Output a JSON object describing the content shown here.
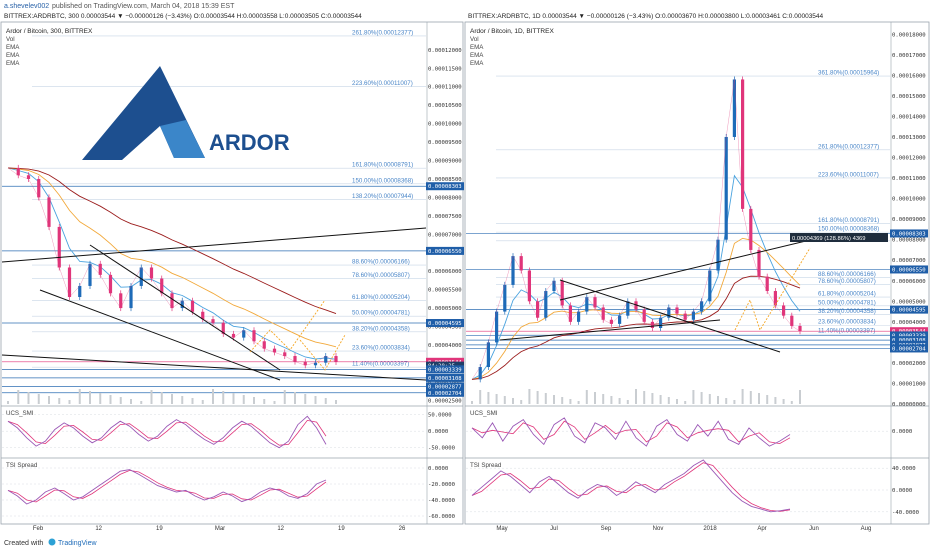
{
  "header": {
    "author": "a.shevelev002",
    "published_text": "published on TradingView.com, March 04, 2018 15:39 EST",
    "left_ohlc": "BITTREX:ARDRBTC, 300  0.00003544 ▼ −0.00000126 (−3.43%) O:0.00003544 H:0.00003558 L:0.00003505 C:0.00003544",
    "right_ohlc": "BITTREX:ARDRBTC, 1D  0.00003544 ▼ −0.00000126 (−3.43%) O:0.00003670 H:0.00003800 L:0.00003461 C:0.00003544"
  },
  "footer": {
    "created_with": "Created with",
    "brand": "TradingView"
  },
  "logo": {
    "text": "ARDOR"
  },
  "colors": {
    "candle_up": "#1e6bb8",
    "candle_down": "#e0357a",
    "ema_short": "#4aa3df",
    "ema_mid": "#f2a93b",
    "ema_long": "#9b1c1c",
    "fib_text": "#4a86c8",
    "fib_line": "#c8d6e6",
    "price_badge": "#1f5ea8",
    "last_price_badge": "#e0357a",
    "arrow_orange": "#f5a623",
    "smi": "#9b59b6",
    "smi_signal": "#e0357a",
    "tsi": "#9b59b6",
    "tsi_signal": "#e0357a",
    "logo_dark": "#1d4f8f",
    "logo_light": "#3b86c9"
  },
  "chart_data": [
    {
      "type": "line",
      "panel": "left",
      "symbol_label": "Ardor / Bitcoin, 300, BITTREX",
      "indicators": [
        "Vol",
        "EMA",
        "EMA",
        "EMA"
      ],
      "y_axis_ticks": [
        "0.00012000",
        "0.00011500",
        "0.00011000",
        "0.00010500",
        "0.00010000",
        "0.00009500",
        "0.00009000",
        "0.00008500",
        "0.00008000",
        "0.00007500",
        "0.00007000",
        "0.00006500",
        "0.00006000",
        "0.00005500",
        "0.00005000",
        "0.00004500",
        "0.00004000",
        "0.00003500",
        "0.00003000",
        "0.00002500"
      ],
      "ylim": [
        2.4e-05,
        0.000127
      ],
      "x_ticks": [
        "Feb",
        "12",
        "19",
        "Mar",
        "12",
        "19",
        "26"
      ],
      "fib_levels": [
        {
          "label": "261.80%(0.00012377)",
          "value": 0.00012377
        },
        {
          "label": "223.60%(0.00011007)",
          "value": 0.00011007
        },
        {
          "label": "161.80%(0.00008791)",
          "value": 8.791e-05
        },
        {
          "label": "150.00%(0.00008368)",
          "value": 8.368e-05
        },
        {
          "label": "138.20%(0.00007944)",
          "value": 7.944e-05
        },
        {
          "label": "88.60%(0.00006166)",
          "value": 6.166e-05
        },
        {
          "label": "78.60%(0.00005807)",
          "value": 5.807e-05
        },
        {
          "label": "61.80%(0.00005204)",
          "value": 5.204e-05
        },
        {
          "label": "50.00%(0.00004781)",
          "value": 4.781e-05
        },
        {
          "label": "38.20%(0.00004358)",
          "value": 4.358e-05
        },
        {
          "label": "23.60%(0.00003834)",
          "value": 3.834e-05
        },
        {
          "label": "11.40%(0.00003397)",
          "value": 3.397e-05
        }
      ],
      "price_badges": [
        {
          "label": "0.00008303",
          "value": 8.303e-05
        },
        {
          "label": "0.00006550",
          "value": 6.55e-05
        },
        {
          "label": "0.00004595",
          "value": 4.595e-05
        },
        {
          "label": "0.00003544",
          "value": 3.544e-05,
          "last": true
        },
        {
          "label": "04:20:25",
          "value": 3.44e-05,
          "timer": true
        },
        {
          "label": "0.00003339",
          "value": 3.339e-05
        },
        {
          "label": "0.00003108",
          "value": 3.108e-05
        },
        {
          "label": "0.00002877",
          "value": 2.877e-05
        },
        {
          "label": "0.00002704",
          "value": 2.704e-05
        }
      ],
      "price_path": [
        8.8e-05,
        8.6e-05,
        8.5e-05,
        8e-05,
        7.2e-05,
        6.1e-05,
        5.3e-05,
        5.6e-05,
        6.2e-05,
        5.9e-05,
        5.4e-05,
        5e-05,
        5.6e-05,
        6.1e-05,
        5.8e-05,
        5.4e-05,
        5e-05,
        5.2e-05,
        4.9e-05,
        4.7e-05,
        4.6e-05,
        4.3e-05,
        4.2e-05,
        4.4e-05,
        4.1e-05,
        3.9e-05,
        3.8e-05,
        3.7e-05,
        3.55e-05,
        3.45e-05,
        3.52e-05,
        3.7e-05,
        3.54e-05
      ]
    },
    {
      "type": "line",
      "panel": "right",
      "symbol_label": "Ardor / Bitcoin, 1D, BITTREX",
      "indicators": [
        "Vol",
        "EMA",
        "EMA",
        "EMA"
      ],
      "y_axis_ticks": [
        "0.00018000",
        "0.00017000",
        "0.00016000",
        "0.00015000",
        "0.00014000",
        "0.00013000",
        "0.00012000",
        "0.00011000",
        "0.00010000",
        "0.00009000",
        "0.00008000",
        "0.00007000",
        "0.00006000",
        "0.00005000",
        "0.00004000",
        "0.00003000",
        "0.00002000",
        "0.00001000",
        "0.00000000"
      ],
      "ylim": [
        0.0,
        0.000185
      ],
      "x_ticks": [
        "May",
        "Jul",
        "Sep",
        "Nov",
        "2018",
        "Apr",
        "Jun",
        "Aug"
      ],
      "fib_levels": [
        {
          "label": "361.80%(0.00015964)",
          "value": 0.00015964
        },
        {
          "label": "261.80%(0.00012377)",
          "value": 0.00012377
        },
        {
          "label": "223.60%(0.00011007)",
          "value": 0.00011007
        },
        {
          "label": "161.80%(0.00008791)",
          "value": 8.791e-05
        },
        {
          "label": "150.00%(0.00008368)",
          "value": 8.368e-05
        },
        {
          "label": "138.20%(0.00007944)",
          "value": 7.944e-05
        },
        {
          "label": "88.60%(0.00006166)",
          "value": 6.166e-05
        },
        {
          "label": "78.60%(0.00005807)",
          "value": 5.807e-05
        },
        {
          "label": "61.80%(0.00005204)",
          "value": 5.204e-05
        },
        {
          "label": "50.00%(0.00004781)",
          "value": 4.781e-05
        },
        {
          "label": "38.20%(0.00004358)",
          "value": 4.358e-05
        },
        {
          "label": "23.60%(0.00003834)",
          "value": 3.834e-05
        },
        {
          "label": "11.40%(0.00003397)",
          "value": 3.397e-05
        }
      ],
      "measure_label": "0.00004369 (128.86%) 4369",
      "price_badges": [
        {
          "label": "0.00008303",
          "value": 8.303e-05
        },
        {
          "label": "0.00006550",
          "value": 6.55e-05
        },
        {
          "label": "0.00004595",
          "value": 4.595e-05
        },
        {
          "label": "0.00003544",
          "value": 3.544e-05,
          "last": true
        },
        {
          "label": "0.00003339",
          "value": 3.339e-05
        },
        {
          "label": "0.00003108",
          "value": 3.108e-05
        },
        {
          "label": "0.00002877",
          "value": 2.877e-05
        },
        {
          "label": "0.00002704",
          "value": 2.704e-05
        }
      ],
      "price_path": [
        1.2e-05,
        1.8e-05,
        3e-05,
        4.5e-05,
        5.8e-05,
        7.2e-05,
        6.5e-05,
        5e-05,
        4.2e-05,
        5.5e-05,
        6e-05,
        4.8e-05,
        4e-05,
        4.5e-05,
        5.2e-05,
        4.7e-05,
        4.1e-05,
        3.9e-05,
        4.3e-05,
        5e-05,
        4.6e-05,
        4e-05,
        3.7e-05,
        4.2e-05,
        4.7e-05,
        4.4e-05,
        4.1e-05,
        4.5e-05,
        5e-05,
        6.5e-05,
        8e-05,
        0.00013,
        0.000158,
        9.5e-05,
        7.5e-05,
        6.2e-05,
        5.5e-05,
        4.8e-05,
        4.3e-05,
        3.8e-05,
        3.54e-05
      ]
    },
    {
      "type": "line",
      "panel": "left-smi",
      "label": "UCS_SMI",
      "y_axis_ticks": [
        "50.0000",
        "0.0000",
        "-50.0000"
      ],
      "ylim": [
        -75,
        70
      ],
      "values": [
        30,
        10,
        -20,
        -45,
        -30,
        5,
        25,
        10,
        -15,
        -35,
        -20,
        10,
        30,
        15,
        -10,
        -30,
        -15,
        15,
        35,
        20,
        -5,
        -25,
        -40,
        -20,
        10,
        30,
        15,
        -10,
        -35,
        -50,
        -30,
        20,
        45,
        10,
        -40
      ]
    },
    {
      "type": "line",
      "panel": "right-smi",
      "label": "UCS_SMI",
      "y_axis_ticks": [
        "0.0000"
      ],
      "ylim": [
        -75,
        70
      ],
      "values": [
        10,
        -20,
        25,
        -30,
        15,
        35,
        -10,
        -40,
        20,
        40,
        -15,
        -35,
        25,
        10,
        -25,
        30,
        -20,
        -45,
        15,
        35,
        -10,
        -30,
        20,
        -15,
        30,
        -25,
        -40,
        10,
        -20,
        -45,
        -30,
        -10
      ]
    },
    {
      "type": "line",
      "panel": "left-tsi",
      "label": "TSI Spread",
      "y_axis_ticks": [
        "0.0000",
        "-20.0000",
        "-40.0000",
        "-60.0000"
      ],
      "ylim": [
        -65,
        10
      ],
      "values": [
        -28,
        -35,
        -45,
        -40,
        -30,
        -25,
        -32,
        -40,
        -36,
        -28,
        -20,
        -12,
        -4,
        -2,
        -8,
        -15,
        -22,
        -26,
        -30,
        -28,
        -35,
        -40,
        -36,
        -30,
        -35,
        -42,
        -38,
        -30,
        -25,
        -28,
        -35,
        -38,
        -32,
        -20,
        -15
      ]
    },
    {
      "type": "line",
      "panel": "right-tsi",
      "label": "TSI Spread",
      "y_axis_ticks": [
        "40.0000",
        "0.0000",
        "-40.0000"
      ],
      "ylim": [
        -55,
        55
      ],
      "values": [
        -10,
        5,
        20,
        35,
        25,
        10,
        -5,
        15,
        25,
        10,
        -5,
        -15,
        0,
        10,
        5,
        -10,
        0,
        15,
        5,
        -5,
        10,
        20,
        30,
        45,
        55,
        35,
        15,
        -5,
        -20,
        -30,
        -35,
        -40,
        -38,
        -35
      ]
    }
  ]
}
